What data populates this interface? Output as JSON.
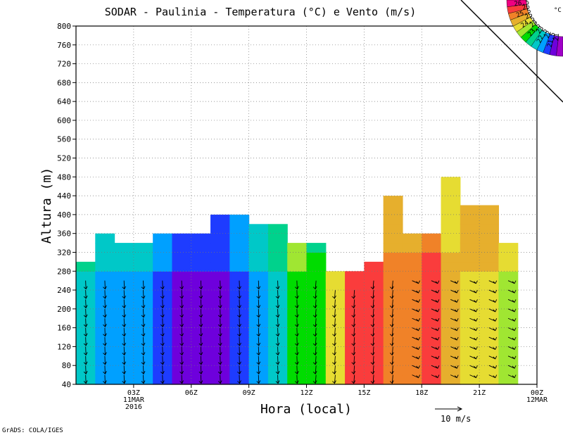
{
  "chart_data": {
    "type": "heatmap",
    "title": "SODAR - Paulinia - Temperatura (°C) e Vento (m/s)",
    "xlabel": "Hora (local)",
    "ylabel": "Altura (m)",
    "ylim": [
      40,
      800
    ],
    "yticks": [
      40,
      80,
      120,
      160,
      200,
      240,
      280,
      320,
      360,
      400,
      440,
      480,
      520,
      560,
      600,
      640,
      680,
      720,
      760,
      800
    ],
    "xlim": [
      0,
      24
    ],
    "xticks": [
      {
        "hour": 3,
        "labels": [
          "03Z",
          "11MAR",
          "2016"
        ]
      },
      {
        "hour": 6,
        "labels": [
          "06Z"
        ]
      },
      {
        "hour": 9,
        "labels": [
          "09Z"
        ]
      },
      {
        "hour": 12,
        "labels": [
          "12Z"
        ]
      },
      {
        "hour": 15,
        "labels": [
          "15Z"
        ]
      },
      {
        "hour": 18,
        "labels": [
          "18Z"
        ]
      },
      {
        "hour": 21,
        "labels": [
          "21Z"
        ]
      },
      {
        "hour": 24,
        "labels": [
          "00Z",
          "12MAR"
        ]
      }
    ],
    "grid": true,
    "data_top": [
      {
        "hours": [
          0,
          1
        ],
        "top": 300
      },
      {
        "hours": [
          1,
          2
        ],
        "top": 360
      },
      {
        "hours": [
          2,
          4
        ],
        "top": 340
      },
      {
        "hours": [
          4,
          7
        ],
        "top": 360
      },
      {
        "hours": [
          7,
          9
        ],
        "top": 400
      },
      {
        "hours": [
          9,
          11
        ],
        "top": 380
      },
      {
        "hours": [
          11,
          13
        ],
        "top": 340
      },
      {
        "hours": [
          13,
          15
        ],
        "top": 280
      },
      {
        "hours": [
          15,
          16
        ],
        "top": 300
      },
      {
        "hours": [
          16,
          17
        ],
        "top": 440
      },
      {
        "hours": [
          17,
          19
        ],
        "top": 360
      },
      {
        "hours": [
          19,
          20
        ],
        "top": 480
      },
      {
        "hours": [
          20,
          22
        ],
        "top": 420
      },
      {
        "hours": [
          22,
          23
        ],
        "top": 340
      }
    ],
    "colorbar": {
      "unit": "°C",
      "levels": [
        "21",
        "21.5",
        "22",
        "22.5",
        "23",
        "23.5",
        "24",
        "24.5",
        "25",
        "25.5",
        "26",
        "26.5"
      ],
      "colors": [
        "#a000c8",
        "#6e00dc",
        "#1e3cff",
        "#00a0ff",
        "#00c8c8",
        "#00d28c",
        "#00dc00",
        "#a0e632",
        "#e6dc32",
        "#e6af2d",
        "#f08228",
        "#fa3c3c",
        "#f00082"
      ]
    },
    "temperature_profile": [
      {
        "hour": 0.5,
        "c": 22.5
      },
      {
        "hour": 1.5,
        "c": 22.0
      },
      {
        "hour": 2.5,
        "c": 22.0
      },
      {
        "hour": 3.5,
        "c": 22.0
      },
      {
        "hour": 4.5,
        "c": 21.5
      },
      {
        "hour": 5.5,
        "c": 21.0
      },
      {
        "hour": 6.5,
        "c": 21.0
      },
      {
        "hour": 7.5,
        "c": 21.0
      },
      {
        "hour": 8.5,
        "c": 21.5
      },
      {
        "hour": 9.5,
        "c": 22.0
      },
      {
        "hour": 10.5,
        "c": 22.5
      },
      {
        "hour": 11.5,
        "c": 23.5
      },
      {
        "hour": 12.5,
        "c": 24.0
      },
      {
        "hour": 13.5,
        "c": 25.0
      },
      {
        "hour": 14.5,
        "c": 26.5
      },
      {
        "hour": 15.5,
        "c": 26.5
      },
      {
        "hour": 16.5,
        "c": 26.0
      },
      {
        "hour": 17.5,
        "c": 26.0
      },
      {
        "hour": 18.5,
        "c": 26.5
      },
      {
        "hour": 19.5,
        "c": 25.5
      },
      {
        "hour": 20.5,
        "c": 24.5
      },
      {
        "hour": 21.5,
        "c": 24.5
      },
      {
        "hour": 22.5,
        "c": 24.0
      },
      {
        "hour": 23.5,
        "c": 24.0
      }
    ],
    "wind_scale": {
      "value": 10,
      "unit": "m/s",
      "label": "10 m/s"
    }
  },
  "footer": {
    "credit": "GrADS: COLA/IGES"
  }
}
